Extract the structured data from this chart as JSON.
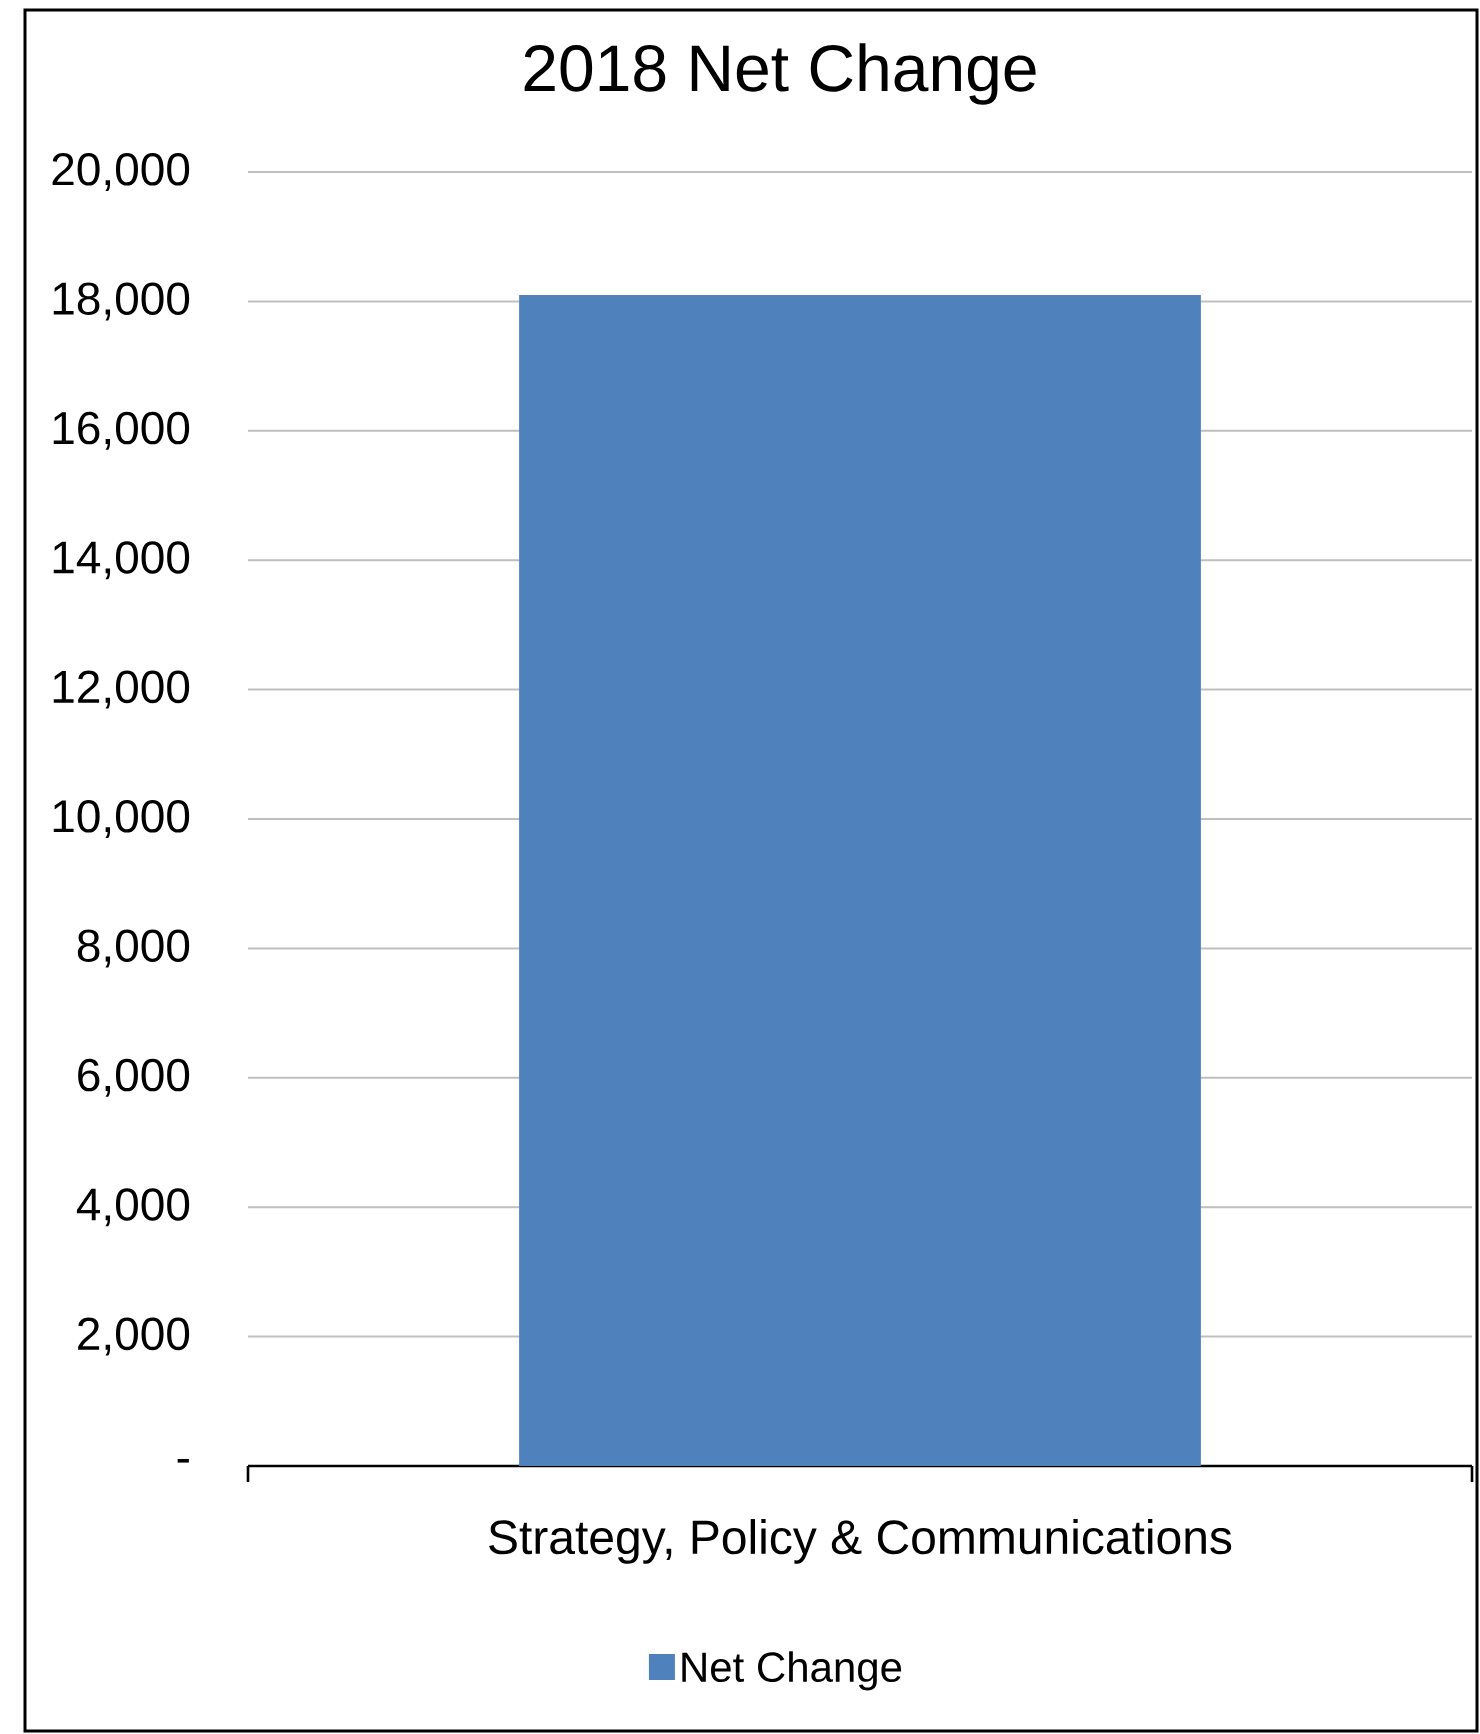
{
  "chart_data": {
    "type": "bar",
    "title": "2018 Net Change",
    "categories": [
      "Strategy, Policy & Communications"
    ],
    "series": [
      {
        "name": "Net Change",
        "color": "#4f81bd",
        "values": [
          18100
        ]
      }
    ],
    "ylim": [
      0,
      20000
    ],
    "yticks": [
      {
        "value": 0,
        "label": "-"
      },
      {
        "value": 2000,
        "label": "2,000"
      },
      {
        "value": 4000,
        "label": "4,000"
      },
      {
        "value": 6000,
        "label": "6,000"
      },
      {
        "value": 8000,
        "label": "8,000"
      },
      {
        "value": 10000,
        "label": "10,000"
      },
      {
        "value": 12000,
        "label": "12,000"
      },
      {
        "value": 14000,
        "label": "14,000"
      },
      {
        "value": 16000,
        "label": "16,000"
      },
      {
        "value": 18000,
        "label": "18,000"
      },
      {
        "value": 20000,
        "label": "20,000"
      }
    ],
    "grid": "y",
    "legend": "bottom"
  }
}
